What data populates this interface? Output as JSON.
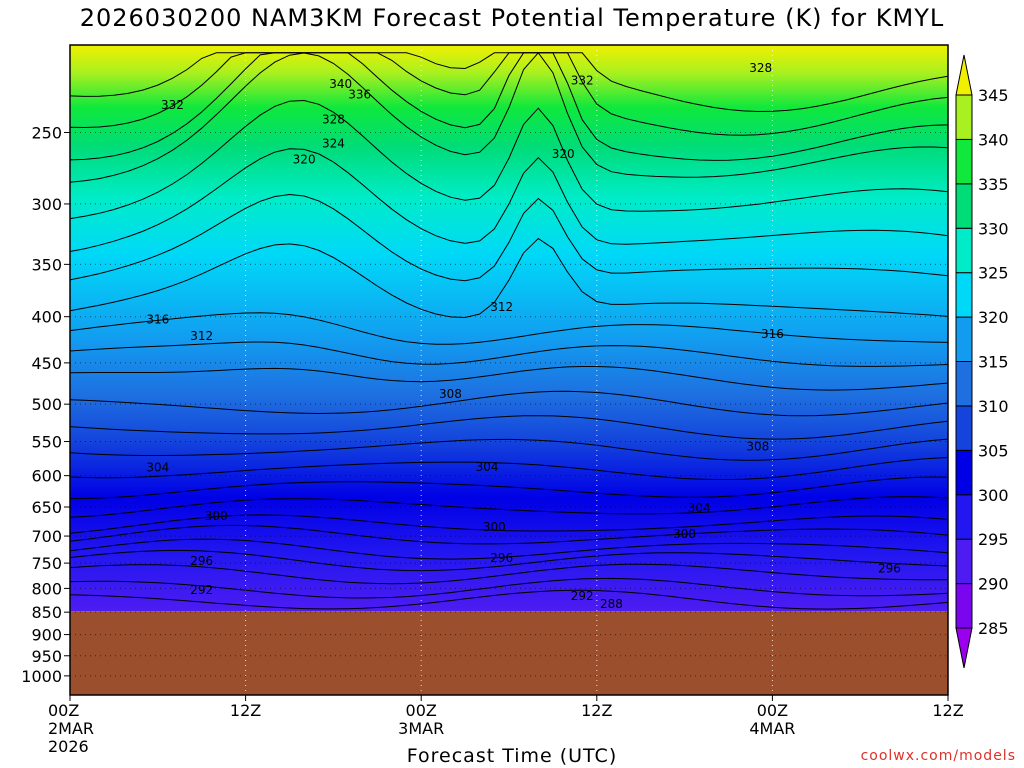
{
  "page": {
    "title": "2026030200 NAM3KM Forecast Potential Temperature (K) for KMYL",
    "xlabel": "Forecast Time (UTC)",
    "credit": "coolwx.com/models"
  },
  "chart_data": {
    "type": "heatmap",
    "title": "2026030200 NAM3KM Forecast Potential Temperature (K) for KMYL",
    "xlabel": "Forecast Time (UTC)",
    "ylabel": "",
    "x_range_hours": [
      0,
      60
    ],
    "y_range_hPa": [
      200,
      1050
    ],
    "y_scale": "log-pressure (inverted)",
    "ground_level_hPa": 848,
    "x_ticks": [
      {
        "hour": 0,
        "lines": [
          "00Z",
          "2MAR",
          "2026"
        ]
      },
      {
        "hour": 12,
        "lines": [
          "12Z"
        ]
      },
      {
        "hour": 24,
        "lines": [
          "00Z",
          "3MAR"
        ]
      },
      {
        "hour": 36,
        "lines": [
          "12Z"
        ]
      },
      {
        "hour": 48,
        "lines": [
          "00Z",
          "4MAR"
        ]
      },
      {
        "hour": 60,
        "lines": [
          "12Z"
        ]
      }
    ],
    "y_ticks": [
      250,
      300,
      350,
      400,
      450,
      500,
      550,
      600,
      650,
      700,
      750,
      800,
      850,
      900,
      950,
      1000
    ],
    "colorbar": {
      "labels": [
        285,
        290,
        295,
        300,
        305,
        310,
        315,
        320,
        325,
        330,
        335,
        340,
        345
      ],
      "bands": [
        {
          "from": 280,
          "to": 285,
          "color": "#9b00ee"
        },
        {
          "from": 285,
          "to": 290,
          "color": "#7a06ef"
        },
        {
          "from": 290,
          "to": 295,
          "color": "#4e1cf2"
        },
        {
          "from": 295,
          "to": 300,
          "color": "#2217f0"
        },
        {
          "from": 300,
          "to": 305,
          "color": "#0000e6"
        },
        {
          "from": 305,
          "to": 310,
          "color": "#1444dc"
        },
        {
          "from": 310,
          "to": 315,
          "color": "#1e6fe0"
        },
        {
          "from": 315,
          "to": 320,
          "color": "#129cf0"
        },
        {
          "from": 320,
          "to": 325,
          "color": "#00d8f8"
        },
        {
          "from": 325,
          "to": 330,
          "color": "#00ecc8"
        },
        {
          "from": 330,
          "to": 335,
          "color": "#00dc78"
        },
        {
          "from": 335,
          "to": 340,
          "color": "#10e83c"
        },
        {
          "from": 340,
          "to": 345,
          "color": "#a8f020"
        },
        {
          "from": 345,
          "to": 350,
          "color": "#f0f000"
        }
      ]
    },
    "terrain_color": "#9c4f2c",
    "contour_labels": [
      {
        "t": "340",
        "h": 18.5,
        "p": 221
      },
      {
        "t": "336",
        "h": 19.8,
        "p": 227
      },
      {
        "t": "332",
        "h": 35.0,
        "p": 219
      },
      {
        "t": "328",
        "h": 47.2,
        "p": 212
      },
      {
        "t": "332",
        "h": 7.0,
        "p": 233
      },
      {
        "t": "328",
        "h": 18.0,
        "p": 242
      },
      {
        "t": "324",
        "h": 18.0,
        "p": 257
      },
      {
        "t": "320",
        "h": 16.0,
        "p": 268
      },
      {
        "t": "320",
        "h": 33.7,
        "p": 264
      },
      {
        "t": "316",
        "h": 6.0,
        "p": 403
      },
      {
        "t": "312",
        "h": 9.0,
        "p": 420
      },
      {
        "t": "312",
        "h": 29.5,
        "p": 390
      },
      {
        "t": "316",
        "h": 48.0,
        "p": 418
      },
      {
        "t": "308",
        "h": 26.0,
        "p": 487
      },
      {
        "t": "308",
        "h": 47.0,
        "p": 557
      },
      {
        "t": "304",
        "h": 6.0,
        "p": 588
      },
      {
        "t": "304",
        "h": 28.5,
        "p": 587
      },
      {
        "t": "304",
        "h": 43.0,
        "p": 652
      },
      {
        "t": "300",
        "h": 10.0,
        "p": 665
      },
      {
        "t": "300",
        "h": 29.0,
        "p": 684
      },
      {
        "t": "300",
        "h": 42.0,
        "p": 696
      },
      {
        "t": "296",
        "h": 9.0,
        "p": 746
      },
      {
        "t": "296",
        "h": 29.5,
        "p": 740
      },
      {
        "t": "296",
        "h": 56.0,
        "p": 760
      },
      {
        "t": "292",
        "h": 9.0,
        "p": 803
      },
      {
        "t": "292",
        "h": 35.0,
        "p": 816
      },
      {
        "t": "288",
        "h": 37.0,
        "p": 832
      }
    ]
  }
}
